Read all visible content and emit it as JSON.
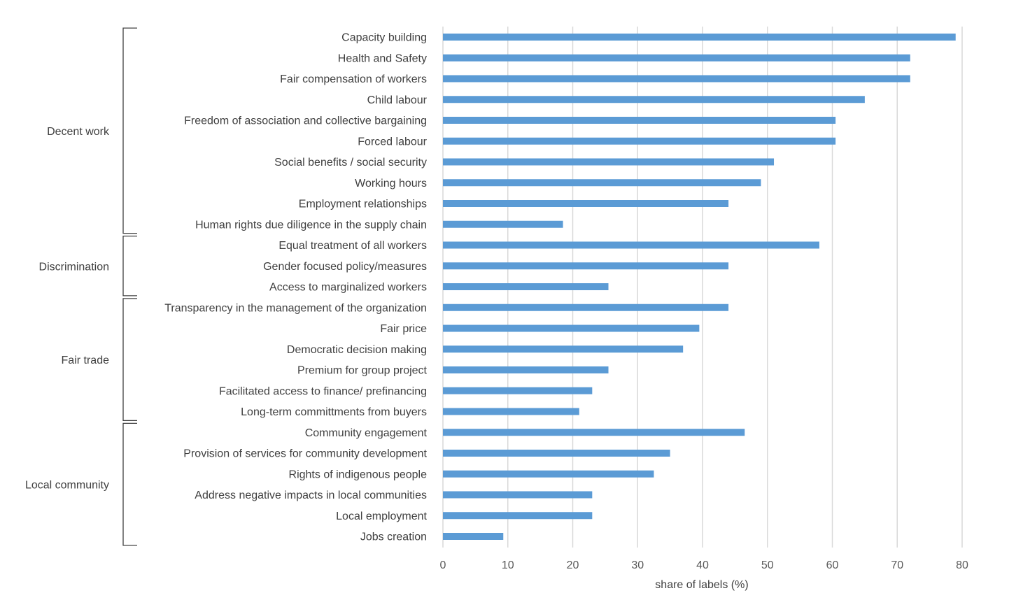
{
  "chart_data": {
    "type": "bar",
    "orientation": "horizontal",
    "xlabel": "share of labels (%)",
    "xlim": [
      0,
      80
    ],
    "x_ticks": [
      "0",
      "10",
      "20",
      "30",
      "40",
      "50",
      "60",
      "70",
      "80"
    ],
    "grid": true,
    "bar_color": "#5b9bd5",
    "categories": [
      "Capacity building",
      "Health and Safety",
      "Fair compensation of workers",
      "Child labour",
      "Freedom of association and collective bargaining",
      "Forced labour",
      "Social benefits / social security",
      "Working hours",
      "Employment relationships",
      "Human rights due diligence in the supply chain",
      "Equal treatment of all workers",
      "Gender focused policy/measures",
      "Access to marginalized workers",
      "Transparency in the management of the organization",
      "Fair price",
      "Democratic decision making",
      "Premium for group project",
      "Facilitated access to finance/ prefinancing",
      "Long-term committments from buyers",
      "Community engagement",
      "Provision of services for community development",
      "Rights of indigenous people",
      "Address negative impacts in local communities",
      "Local employment",
      "Jobs creation"
    ],
    "values": [
      79,
      72,
      72,
      65,
      60.5,
      60.5,
      51,
      49,
      44,
      18.5,
      58,
      44,
      25.5,
      44,
      39.5,
      37,
      25.5,
      23,
      21,
      46.5,
      35,
      32.5,
      23,
      23,
      9.3
    ],
    "groups": [
      {
        "name": "Decent work",
        "first": 0,
        "last": 9
      },
      {
        "name": "Discrimination",
        "first": 10,
        "last": 12
      },
      {
        "name": "Fair trade",
        "first": 13,
        "last": 18
      },
      {
        "name": "Local community",
        "first": 19,
        "last": 24
      }
    ]
  }
}
